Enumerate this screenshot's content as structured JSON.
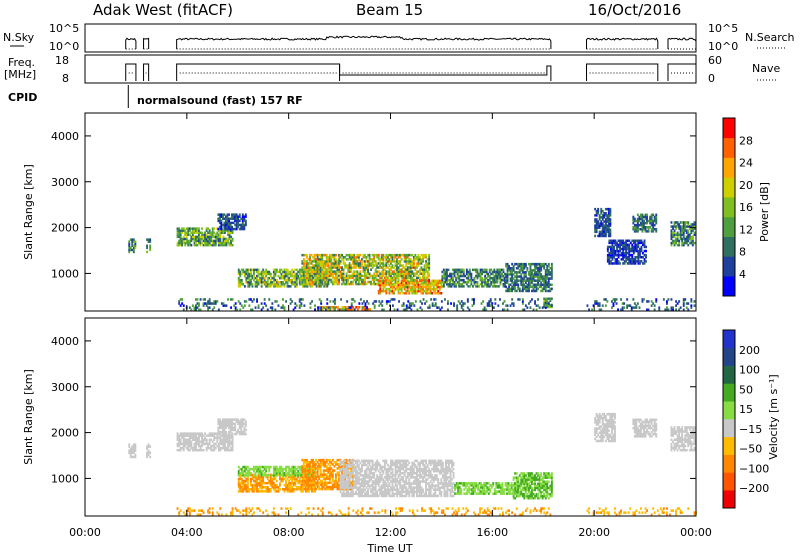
{
  "header": {
    "station": "Adak West (fitACF)",
    "beam": "Beam 15",
    "date": "16/Oct/2016"
  },
  "top_panels": {
    "nsky_label": "N.Sky",
    "nsky_ticks": [
      "10^5",
      "10^0"
    ],
    "nsearch_label": "N.Search",
    "nsearch_ticks": [
      "10^5",
      "10^0"
    ],
    "freq_label_1": "Freq.",
    "freq_label_2": "[MHz]",
    "freq_ticks": [
      "18",
      "8"
    ],
    "nave_label": "Nave",
    "nave_ticks": [
      "60",
      "0"
    ],
    "cpid_label": "CPID",
    "cpid_text": "normalsound (fast) 157 RF",
    "cpid_time_hours": 1.7,
    "active_intervals_hours": [
      [
        1.6,
        2.0
      ],
      [
        2.3,
        2.5
      ],
      [
        3.6,
        18.3
      ],
      [
        19.7,
        22.5
      ],
      [
        22.9,
        24.0
      ]
    ],
    "freq_high_intervals_hours": [
      [
        1.6,
        2.0
      ],
      [
        2.3,
        2.5
      ],
      [
        3.6,
        10.0
      ],
      [
        19.7,
        22.5
      ],
      [
        22.9,
        24.0
      ]
    ],
    "freq_low_intervals_hours": [
      [
        10.0,
        18.3
      ]
    ]
  },
  "colors": {
    "power_scale": [
      "#0000ff",
      "#1f3f9f",
      "#2f6f5f",
      "#4f9f3f",
      "#7fbf1f",
      "#cfcf00",
      "#ffa500",
      "#ff6000",
      "#ff0000"
    ],
    "velocity_scale": [
      "#ee0000",
      "#ff5500",
      "#ff8800",
      "#ffbb00",
      "#c8c8c8",
      "#88dd44",
      "#44aa22",
      "#226644",
      "#224488",
      "#2233cc"
    ],
    "ground_scatter": "#c8c8c8"
  },
  "chart_data": [
    {
      "type": "heatmap",
      "name": "power",
      "ylabel": "Slant Range [km]",
      "xlabel": "Time UT",
      "xlim_hours": [
        0,
        24
      ],
      "ylim": [
        180,
        4500
      ],
      "y_ticks": [
        "1000",
        "2000",
        "3000",
        "4000"
      ],
      "x_ticks": [
        "00:00",
        "04:00",
        "08:00",
        "12:00",
        "16:00",
        "20:00",
        "00:00"
      ],
      "colorbar_label": "Power [dB]",
      "colorbar_ticks": [
        "4",
        "8",
        "12",
        "16",
        "20",
        "24",
        "28"
      ],
      "colorbar_range": [
        0,
        32
      ],
      "regions": [
        {
          "t": [
            1.7,
            2.0
          ],
          "r": [
            1450,
            1750
          ],
          "v": [
            5,
            18
          ]
        },
        {
          "t": [
            2.4,
            2.55
          ],
          "r": [
            1450,
            1750
          ],
          "v": [
            5,
            16
          ]
        },
        {
          "t": [
            3.6,
            5.8
          ],
          "r": [
            1600,
            2000
          ],
          "v": [
            6,
            20
          ]
        },
        {
          "t": [
            5.2,
            6.3
          ],
          "r": [
            1950,
            2300
          ],
          "v": [
            2,
            10
          ]
        },
        {
          "t": [
            6.0,
            9.5
          ],
          "r": [
            700,
            1100
          ],
          "v": [
            6,
            22
          ]
        },
        {
          "t": [
            8.5,
            13.5
          ],
          "r": [
            750,
            1400
          ],
          "v": [
            8,
            26
          ]
        },
        {
          "t": [
            11.5,
            14.0
          ],
          "r": [
            550,
            850
          ],
          "v": [
            14,
            30
          ]
        },
        {
          "t": [
            14.0,
            16.5
          ],
          "r": [
            700,
            1100
          ],
          "v": [
            4,
            16
          ]
        },
        {
          "t": [
            16.5,
            18.3
          ],
          "r": [
            600,
            1200
          ],
          "v": [
            4,
            14
          ]
        },
        {
          "t": [
            18.0,
            18.3
          ],
          "r": [
            250,
            450
          ],
          "v": [
            6,
            20
          ]
        },
        {
          "t": [
            9.0,
            10.2
          ],
          "r": [
            200,
            260
          ],
          "v": [
            16,
            26
          ]
        },
        {
          "t": [
            10.2,
            11.2
          ],
          "r": [
            200,
            250
          ],
          "v": [
            22,
            30
          ]
        },
        {
          "t": [
            20.0,
            20.6
          ],
          "r": [
            1800,
            2400
          ],
          "v": [
            3,
            10
          ]
        },
        {
          "t": [
            21.5,
            22.4
          ],
          "r": [
            1900,
            2300
          ],
          "v": [
            4,
            14
          ]
        },
        {
          "t": [
            20.5,
            22.0
          ],
          "r": [
            1200,
            1700
          ],
          "v": [
            2,
            8
          ]
        },
        {
          "t": [
            23.0,
            23.9
          ],
          "r": [
            1600,
            2100
          ],
          "v": [
            4,
            16
          ]
        },
        {
          "t": [
            3.6,
            18.3
          ],
          "r": [
            190,
            420
          ],
          "v": [
            2,
            14
          ],
          "sparse": true
        },
        {
          "t": [
            19.7,
            24.0
          ],
          "r": [
            190,
            420
          ],
          "v": [
            2,
            12
          ],
          "sparse": true
        }
      ]
    },
    {
      "type": "heatmap",
      "name": "velocity",
      "ylabel": "Slant Range [km]",
      "xlabel": "Time UT",
      "xlim_hours": [
        0,
        24
      ],
      "ylim": [
        180,
        4500
      ],
      "y_ticks": [
        "1000",
        "2000",
        "3000",
        "4000"
      ],
      "x_ticks": [
        "00:00",
        "04:00",
        "08:00",
        "12:00",
        "16:00",
        "20:00",
        "00:00"
      ],
      "colorbar_label": "Velocity [m s⁻¹]",
      "colorbar_ticks": [
        "200",
        "100",
        "50",
        "15",
        "−15",
        "−50",
        "−100",
        "−200"
      ],
      "colorbar_range": [
        -250,
        250
      ],
      "regions": [
        {
          "t": [
            1.7,
            2.0
          ],
          "r": [
            1450,
            1750
          ],
          "v": [
            -10,
            10
          ]
        },
        {
          "t": [
            2.4,
            2.55
          ],
          "r": [
            1450,
            1750
          ],
          "v": [
            -10,
            10
          ]
        },
        {
          "t": [
            3.6,
            5.8
          ],
          "r": [
            1600,
            2000
          ],
          "v": [
            -12,
            12
          ]
        },
        {
          "t": [
            5.2,
            6.3
          ],
          "r": [
            1950,
            2300
          ],
          "v": [
            -12,
            12
          ]
        },
        {
          "t": [
            6.0,
            9.0
          ],
          "r": [
            700,
            1100
          ],
          "v": [
            -80,
            -20
          ]
        },
        {
          "t": [
            6.0,
            9.0
          ],
          "r": [
            1050,
            1250
          ],
          "v": [
            20,
            60
          ]
        },
        {
          "t": [
            8.5,
            10.5
          ],
          "r": [
            750,
            1400
          ],
          "v": [
            -90,
            -30
          ]
        },
        {
          "t": [
            10.0,
            14.5
          ],
          "r": [
            600,
            1400
          ],
          "v": [
            -12,
            12
          ]
        },
        {
          "t": [
            14.5,
            17.0
          ],
          "r": [
            650,
            900
          ],
          "v": [
            20,
            60
          ]
        },
        {
          "t": [
            16.8,
            18.3
          ],
          "r": [
            550,
            1100
          ],
          "v": [
            20,
            80
          ]
        },
        {
          "t": [
            3.6,
            18.3
          ],
          "r": [
            190,
            360
          ],
          "v": [
            -70,
            -20
          ],
          "sparse": true
        },
        {
          "t": [
            20.0,
            20.8
          ],
          "r": [
            1800,
            2400
          ],
          "v": [
            -12,
            12
          ]
        },
        {
          "t": [
            21.5,
            22.4
          ],
          "r": [
            1900,
            2300
          ],
          "v": [
            -12,
            12
          ]
        },
        {
          "t": [
            23.0,
            23.9
          ],
          "r": [
            1600,
            2100
          ],
          "v": [
            -12,
            12
          ]
        },
        {
          "t": [
            19.7,
            24.0
          ],
          "r": [
            190,
            360
          ],
          "v": [
            -60,
            -20
          ],
          "sparse": true
        }
      ]
    }
  ]
}
